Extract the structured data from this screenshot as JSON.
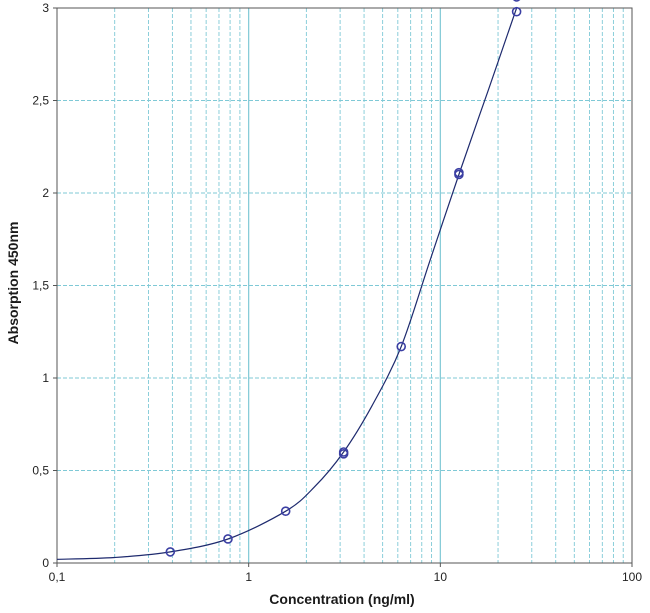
{
  "chart_data": {
    "type": "scatter",
    "title": "",
    "xlabel": "Concentration (ng/ml)",
    "ylabel": "Absorption 450nm",
    "x_scale": "log",
    "xlim": [
      0.1,
      100
    ],
    "ylim": [
      0,
      3
    ],
    "x_ticks": [
      {
        "value": 0.1,
        "label": "0,1"
      },
      {
        "value": 1,
        "label": "1"
      },
      {
        "value": 10,
        "label": "10"
      },
      {
        "value": 100,
        "label": "100"
      }
    ],
    "y_ticks": [
      {
        "value": 0,
        "label": "0"
      },
      {
        "value": 0.5,
        "label": "0,5"
      },
      {
        "value": 1,
        "label": "1"
      },
      {
        "value": 1.5,
        "label": "1,5"
      },
      {
        "value": 2,
        "label": "2"
      },
      {
        "value": 2.5,
        "label": "2,5"
      },
      {
        "value": 3,
        "label": "3"
      }
    ],
    "grid": true,
    "legend": "none",
    "colors": {
      "points": "#3b3fa3",
      "curve": "#1e2a6e",
      "grid": "#7fc9d6",
      "axis": "#555555"
    },
    "series": [
      {
        "points": [
          {
            "x": 0.39,
            "y": 0.06
          },
          {
            "x": 0.78,
            "y": 0.13
          },
          {
            "x": 1.56,
            "y": 0.28
          },
          {
            "x": 3.13,
            "y": 0.6
          },
          {
            "x": 3.13,
            "y": 0.59
          },
          {
            "x": 6.25,
            "y": 1.17
          },
          {
            "x": 12.5,
            "y": 2.11
          },
          {
            "x": 12.5,
            "y": 2.1
          },
          {
            "x": 25,
            "y": 2.98
          },
          {
            "x": 25,
            "y": 3.06
          }
        ],
        "fit_curve": [
          {
            "x": 0.1,
            "y": 0.02
          },
          {
            "x": 0.2,
            "y": 0.03
          },
          {
            "x": 0.39,
            "y": 0.06
          },
          {
            "x": 0.78,
            "y": 0.13
          },
          {
            "x": 1.56,
            "y": 0.28
          },
          {
            "x": 2.2,
            "y": 0.41
          },
          {
            "x": 3.13,
            "y": 0.6
          },
          {
            "x": 4.4,
            "y": 0.85
          },
          {
            "x": 6.25,
            "y": 1.17
          },
          {
            "x": 8.8,
            "y": 1.63
          },
          {
            "x": 12.5,
            "y": 2.1
          },
          {
            "x": 17.7,
            "y": 2.55
          },
          {
            "x": 25,
            "y": 3.0
          }
        ]
      }
    ]
  }
}
